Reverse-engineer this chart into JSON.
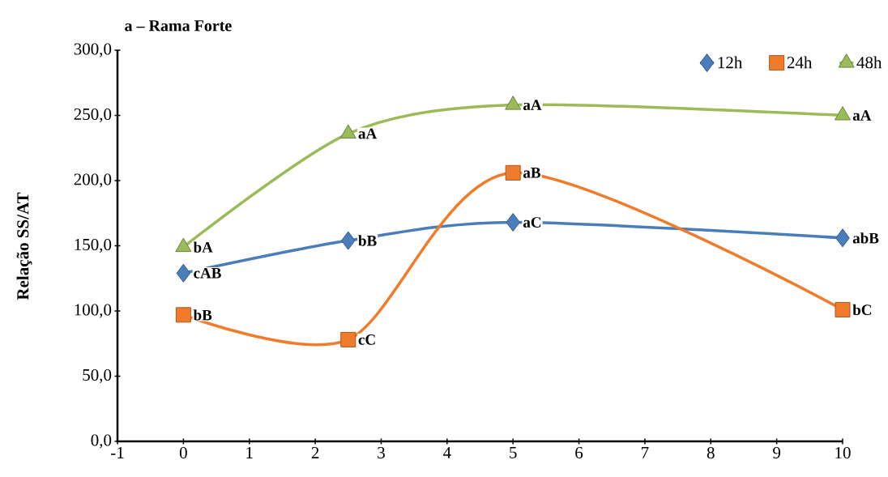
{
  "chart_data": {
    "type": "line",
    "title": "a – Rama Forte",
    "ylabel": "Relação SS/AT",
    "xlim": [
      -1,
      10
    ],
    "xticks": [
      -1,
      0,
      1,
      2,
      3,
      4,
      5,
      6,
      7,
      8,
      9,
      10
    ],
    "ylim": [
      0,
      300
    ],
    "yticks": [
      {
        "value": 0,
        "label": "0,0"
      },
      {
        "value": 50,
        "label": "50,0"
      },
      {
        "value": 100,
        "label": "100,0"
      },
      {
        "value": 150,
        "label": "150,0"
      },
      {
        "value": 200,
        "label": "200,0"
      },
      {
        "value": 250,
        "label": "250,0"
      },
      {
        "value": 300,
        "label": "300,0"
      }
    ],
    "x": [
      0,
      2.5,
      5,
      10
    ],
    "series": [
      {
        "name": "12h",
        "color": "#4a7ebb",
        "marker": "diamond",
        "values": [
          129,
          154,
          168,
          156
        ]
      },
      {
        "name": "24h",
        "color": "#f07b2a",
        "marker": "square",
        "values": [
          97,
          78,
          206,
          101
        ]
      },
      {
        "name": "48h",
        "color": "#9bbb59",
        "marker": "triangle",
        "values": [
          149,
          236,
          258,
          250
        ]
      }
    ],
    "annotations": [
      {
        "text": "cAB",
        "x": 0,
        "y": 129
      },
      {
        "text": "bB",
        "x": 2.5,
        "y": 154
      },
      {
        "text": "aC",
        "x": 5,
        "y": 168
      },
      {
        "text": "abB",
        "x": 10,
        "y": 156
      },
      {
        "text": "bB",
        "x": 0,
        "y": 97
      },
      {
        "text": "cC",
        "x": 2.5,
        "y": 78
      },
      {
        "text": "aB",
        "x": 5,
        "y": 206
      },
      {
        "text": "bC",
        "x": 10,
        "y": 101
      },
      {
        "text": "bA",
        "x": 0,
        "y": 149
      },
      {
        "text": "aA",
        "x": 2.5,
        "y": 236
      },
      {
        "text": "aA",
        "x": 5,
        "y": 258
      },
      {
        "text": "aA",
        "x": 10,
        "y": 250
      }
    ],
    "legend": "top right",
    "grid": false,
    "line_style": "solid"
  }
}
